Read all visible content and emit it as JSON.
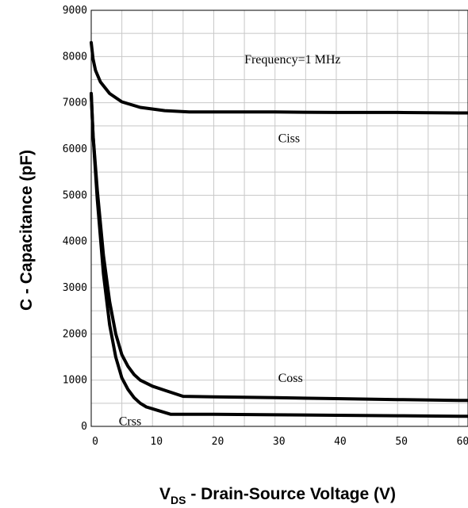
{
  "chart_data": {
    "type": "line",
    "xlabel_main": "V",
    "xlabel_sub": "DS",
    "xlabel_rest": " - Drain-Source Voltage (V)",
    "ylabel": "C - Capacitance (pF)",
    "xlim": [
      0,
      61.5
    ],
    "ylim": [
      0,
      9000
    ],
    "x_ticks": [
      0,
      10,
      20,
      30,
      40,
      50,
      60
    ],
    "y_ticks": [
      0,
      1000,
      2000,
      3000,
      4000,
      5000,
      6000,
      7000,
      8000,
      9000
    ],
    "grid": true,
    "annotation": "Frequency=1 MHz",
    "series": [
      {
        "name": "Ciss",
        "x": [
          0,
          0.3,
          0.7,
          1.5,
          3,
          5,
          8,
          12,
          16,
          20,
          30,
          40,
          50,
          60,
          61.5
        ],
        "values": [
          8300,
          7950,
          7700,
          7450,
          7200,
          7020,
          6900,
          6830,
          6800,
          6800,
          6800,
          6790,
          6790,
          6780,
          6780
        ]
      },
      {
        "name": "Coss",
        "x": [
          0,
          0.3,
          1,
          2,
          3,
          4,
          5,
          6,
          7,
          8,
          10,
          12,
          15,
          20,
          30,
          40,
          50,
          60,
          61.5
        ],
        "values": [
          7200,
          6300,
          5100,
          3700,
          2700,
          2000,
          1550,
          1300,
          1120,
          1000,
          870,
          780,
          650,
          640,
          620,
          600,
          580,
          560,
          560
        ]
      },
      {
        "name": "Crss",
        "x": [
          0,
          0.3,
          1,
          2,
          3,
          4,
          5,
          6,
          7,
          8,
          9,
          10,
          11,
          13,
          20,
          30,
          40,
          50,
          60,
          61.5
        ],
        "values": [
          7200,
          6300,
          4900,
          3300,
          2200,
          1500,
          1050,
          800,
          620,
          500,
          420,
          380,
          340,
          260,
          260,
          250,
          240,
          230,
          220,
          220
        ]
      }
    ]
  }
}
